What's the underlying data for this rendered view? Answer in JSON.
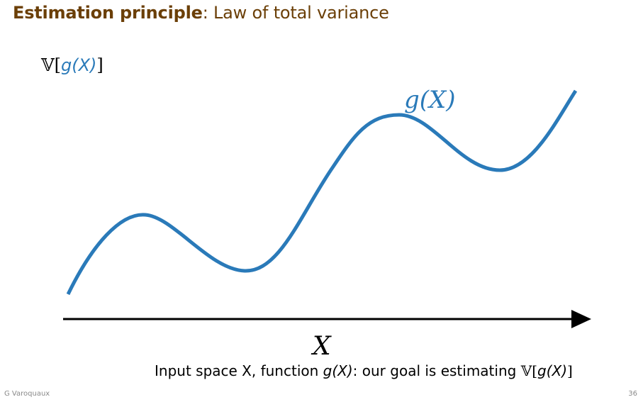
{
  "title": {
    "bold": "Estimation principle",
    "rest": ": Law of total variance"
  },
  "axis_label": {
    "prefix": "𝕍[",
    "func": "g(X)",
    "suffix": "]"
  },
  "curve_label": "g(X)",
  "x_axis_label": "X",
  "caption": {
    "part1": "Input space X, function ",
    "func": "g(X)",
    "part2": ": our goal is estimating ",
    "var_prefix": "𝕍[",
    "var_func": "g(X)",
    "var_suffix": "]"
  },
  "footer": {
    "author": "G Varoquaux",
    "page": "36"
  },
  "colors": {
    "title": "#6b3f07",
    "curve": "#2a7ab9",
    "axis": "#000000"
  }
}
